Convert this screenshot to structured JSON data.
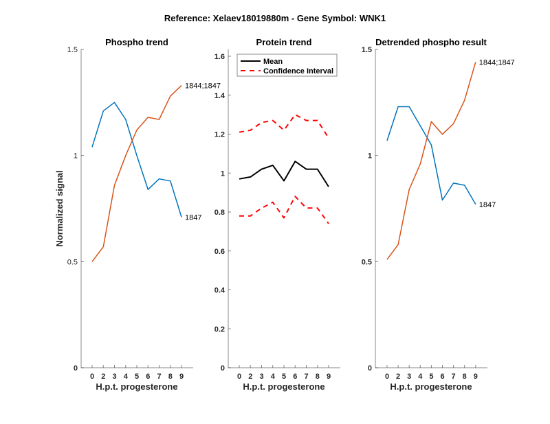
{
  "figure": {
    "suptitle": "Reference:  Xelaev18019880m - Gene Symbol:  WNK1"
  },
  "colors": {
    "blue": "#0072BD",
    "orange": "#D95319",
    "mean": "#000000",
    "ci": "#FF0000"
  },
  "chart_data": [
    {
      "type": "line",
      "title": "Phospho trend",
      "xlabel": "H.p.t. progesterone",
      "ylabel": "Normalized signal",
      "x_ticks": [
        "0",
        "2",
        "3",
        "4",
        "5",
        "6",
        "7",
        "8",
        "9"
      ],
      "ylim": [
        0,
        1.5
      ],
      "y_ticks": [
        "0",
        "0.5",
        "1",
        "1.5"
      ],
      "y_tick_values": [
        0,
        0.5,
        1,
        1.5
      ],
      "grid": false,
      "series": [
        {
          "name": "1847",
          "color": "blue",
          "end_label": "1847",
          "values": [
            1.04,
            1.21,
            1.25,
            1.17,
            1.0,
            0.84,
            0.89,
            0.88,
            0.71
          ]
        },
        {
          "name": "1844;1847",
          "color": "orange",
          "end_label": "1844;1847",
          "values": [
            0.5,
            0.57,
            0.86,
            1.0,
            1.12,
            1.18,
            1.17,
            1.28,
            1.33
          ]
        }
      ]
    },
    {
      "type": "line",
      "title": "Protein trend",
      "xlabel": "H.p.t. progesterone",
      "ylabel": "",
      "x_ticks": [
        "0",
        "2",
        "3",
        "4",
        "5",
        "6",
        "7",
        "8",
        "9"
      ],
      "ylim": [
        0,
        1.65
      ],
      "y_ticks": [
        "0",
        "0.2",
        "0.4",
        "0.6",
        "0.8",
        "1",
        "1.2",
        "1.4",
        "1.6"
      ],
      "y_tick_values": [
        0,
        0.2,
        0.4,
        0.6,
        0.8,
        1,
        1.2,
        1.4,
        1.6
      ],
      "grid": false,
      "legend": {
        "placement": "top-left",
        "entries": [
          "Mean",
          "Confidence Interval"
        ]
      },
      "series": [
        {
          "name": "Mean",
          "color": "mean",
          "style": "solid",
          "values": [
            0.97,
            0.98,
            1.02,
            1.04,
            0.96,
            1.06,
            1.02,
            1.02,
            0.93
          ]
        },
        {
          "name": "Confidence Interval (upper)",
          "color": "ci",
          "style": "dashed",
          "values": [
            1.21,
            1.22,
            1.26,
            1.27,
            1.22,
            1.3,
            1.27,
            1.27,
            1.18
          ]
        },
        {
          "name": "Confidence Interval (lower)",
          "color": "ci",
          "style": "dashed",
          "values": [
            0.78,
            0.78,
            0.82,
            0.85,
            0.77,
            0.88,
            0.82,
            0.82,
            0.74
          ]
        }
      ]
    },
    {
      "type": "line",
      "title": "Detrended phospho result",
      "xlabel": "H.p.t. progesterone",
      "ylabel": "",
      "x_ticks": [
        "0",
        "2",
        "3",
        "4",
        "5",
        "6",
        "7",
        "8",
        "9"
      ],
      "ylim": [
        0,
        1.5
      ],
      "y_ticks": [
        "0",
        "0.5",
        "1",
        "1.5"
      ],
      "y_tick_values": [
        0,
        0.5,
        1,
        1.5
      ],
      "grid": false,
      "series": [
        {
          "name": "1847",
          "color": "blue",
          "end_label": "1847",
          "values": [
            1.07,
            1.23,
            1.23,
            1.14,
            1.05,
            0.79,
            0.87,
            0.86,
            0.77
          ]
        },
        {
          "name": "1844;1847",
          "color": "orange",
          "end_label": "1844;1847",
          "values": [
            0.51,
            0.58,
            0.84,
            0.96,
            1.16,
            1.1,
            1.15,
            1.26,
            1.44
          ]
        }
      ]
    }
  ]
}
